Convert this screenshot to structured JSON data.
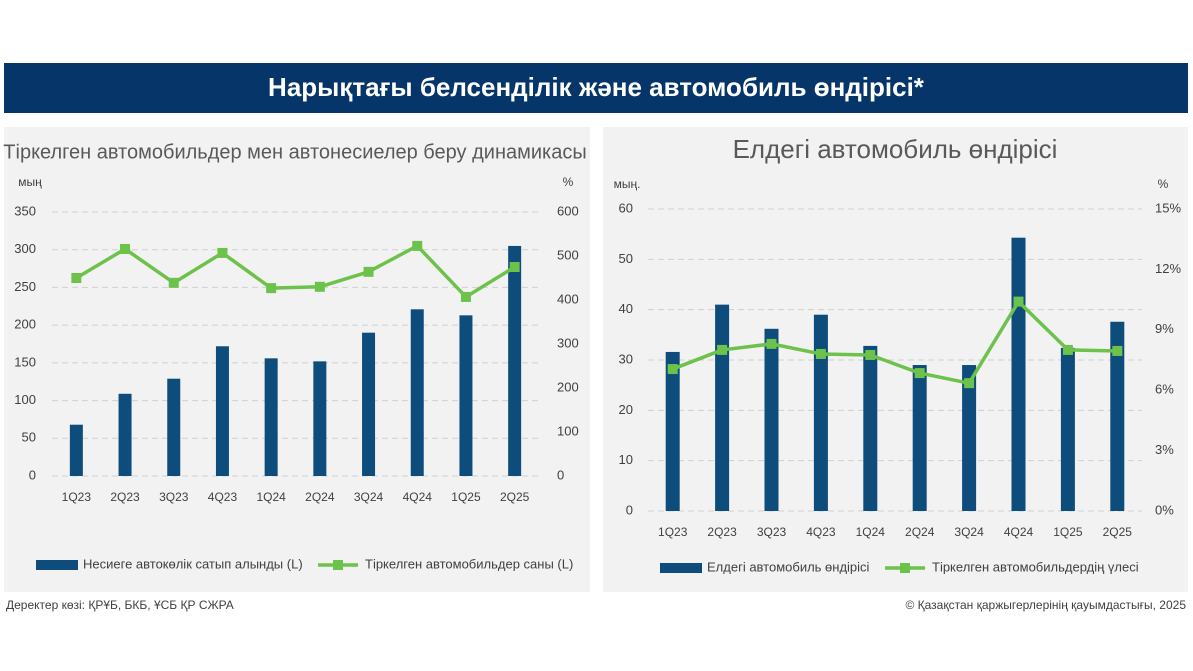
{
  "header": {
    "title": "Нарықтағы белсенділік және автомобиль өндірісі*"
  },
  "chart_data": [
    {
      "type": "combo",
      "title": "Тіркелген автомобильдер мен автонесиелер беру динамикасы",
      "y_label": "мың",
      "y2_label": "%",
      "categories": [
        "1Q23",
        "2Q23",
        "3Q23",
        "4Q23",
        "1Q24",
        "2Q24",
        "3Q24",
        "4Q24",
        "1Q25",
        "2Q25"
      ],
      "series": [
        {
          "name": "Несиеге автокөлік сатып алынды (L)",
          "type": "bar",
          "color": "#0e4c7c",
          "values": [
            68,
            109,
            129,
            172,
            156,
            152,
            190,
            221,
            213,
            305
          ]
        },
        {
          "name": "Тіркелген автомобильдер саны (L)",
          "type": "line",
          "axis": "y2",
          "color": "#6cc24a",
          "values": [
            450,
            516,
            439,
            507,
            427,
            430,
            464,
            523,
            407,
            475
          ]
        }
      ],
      "ylim": [
        0,
        350
      ],
      "yticks": [
        0,
        50,
        100,
        150,
        200,
        250,
        300,
        350
      ],
      "y2lim": [
        0,
        600
      ],
      "y2ticks": [
        0,
        100,
        200,
        300,
        400,
        500,
        600
      ],
      "grid": true,
      "legend": "bottom"
    },
    {
      "type": "combo",
      "title": "Елдегі автомобиль өндірісі",
      "y_label": "мың.",
      "y2_label": "%",
      "categories": [
        "1Q23",
        "2Q23",
        "3Q23",
        "4Q23",
        "1Q24",
        "2Q24",
        "3Q24",
        "4Q24",
        "1Q25",
        "2Q25"
      ],
      "series": [
        {
          "name": "Елдегі автомобиль өндірісі",
          "type": "bar",
          "color": "#0e4c7c",
          "values": [
            31.6,
            41,
            36.2,
            39,
            32.8,
            29,
            29,
            54.3,
            32.4,
            37.6
          ]
        },
        {
          "name": "Тіркелген автомобильдердің үлесі",
          "type": "line",
          "axis": "y2",
          "color": "#6cc24a",
          "values": [
            7.05,
            8.0,
            8.3,
            7.8,
            7.75,
            6.85,
            6.35,
            10.4,
            8.0,
            7.95
          ]
        }
      ],
      "ylim": [
        0,
        60
      ],
      "yticks": [
        0,
        10,
        20,
        30,
        40,
        50,
        60
      ],
      "y2lim": [
        0,
        15
      ],
      "y2ticks": [
        {
          "value": 0,
          "label": "0%"
        },
        {
          "value": 3,
          "label": "3%"
        },
        {
          "value": 6,
          "label": "6%"
        },
        {
          "value": 9,
          "label": "9%"
        },
        {
          "value": 12,
          "label": "12%"
        },
        {
          "value": 15,
          "label": "15%"
        }
      ],
      "grid": true,
      "legend": "bottom"
    }
  ],
  "footer": {
    "source": "Деректер көзі: ҚРҰБ, БКБ, ҰСБ ҚР СЖРА",
    "copyright": "© Қазақстан қаржыгерлерінің қауымдастығы, 2025"
  }
}
